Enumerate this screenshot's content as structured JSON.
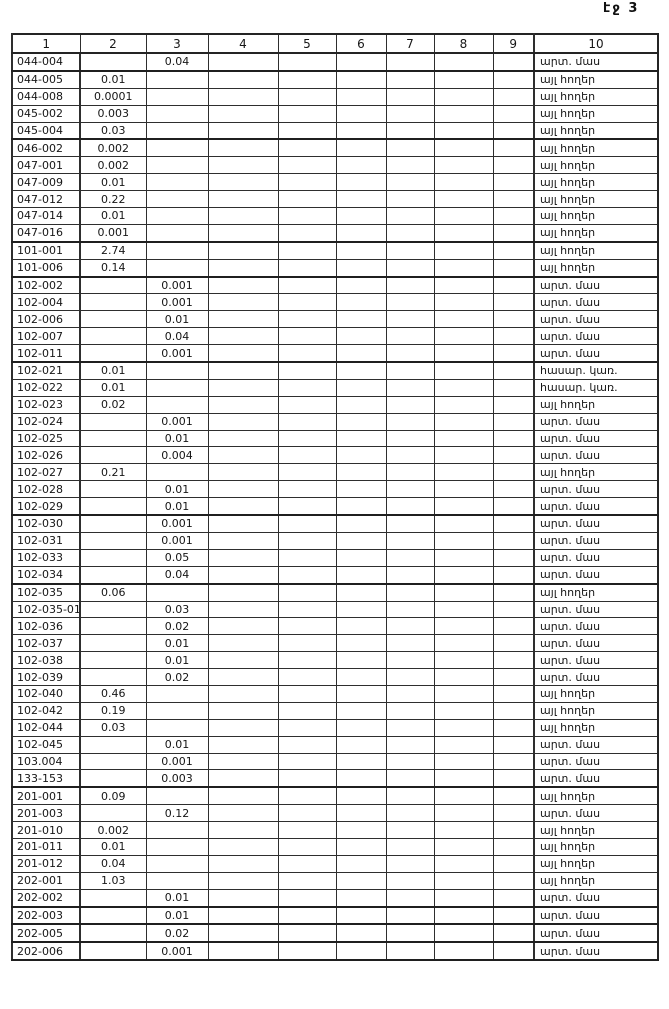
{
  "page": {
    "label": "էջ 3"
  },
  "table": {
    "headers": [
      "1",
      "2",
      "3",
      "4",
      "5",
      "6",
      "7",
      "8",
      "9",
      "10"
    ],
    "rows": [
      [
        "044-004",
        "",
        "0.04",
        "",
        "",
        "",
        "",
        "",
        "",
        "արտ. մաս"
      ],
      [
        "044-005",
        "0.01",
        "",
        "",
        "",
        "",
        "",
        "",
        "",
        "այլ հողեր"
      ],
      [
        "044-008",
        "0.0001",
        "",
        "",
        "",
        "",
        "",
        "",
        "",
        "այլ հողեր"
      ],
      [
        "045-002",
        "0.003",
        "",
        "",
        "",
        "",
        "",
        "",
        "",
        "այլ հողեր"
      ],
      [
        "045-004",
        "0.03",
        "",
        "",
        "",
        "",
        "",
        "",
        "",
        "այլ հողեր"
      ],
      [
        "046-002",
        "0.002",
        "",
        "",
        "",
        "",
        "",
        "",
        "",
        "այլ հողեր"
      ],
      [
        "047-001",
        "0.002",
        "",
        "",
        "",
        "",
        "",
        "",
        "",
        "այլ հողեր"
      ],
      [
        "047-009",
        "0.01",
        "",
        "",
        "",
        "",
        "",
        "",
        "",
        "այլ հողեր"
      ],
      [
        "047-012",
        "0.22",
        "",
        "",
        "",
        "",
        "",
        "",
        "",
        "այլ հողեր"
      ],
      [
        "047-014",
        "0.01",
        "",
        "",
        "",
        "",
        "",
        "",
        "",
        "այլ հողեր"
      ],
      [
        "047-016",
        "0.001",
        "",
        "",
        "",
        "",
        "",
        "",
        "",
        "այլ հողեր"
      ],
      [
        "101-001",
        "2.74",
        "",
        "",
        "",
        "",
        "",
        "",
        "",
        "այլ հողեր"
      ],
      [
        "101-006",
        "0.14",
        "",
        "",
        "",
        "",
        "",
        "",
        "",
        "այլ հողեր"
      ],
      [
        "102-002",
        "",
        "0.001",
        "",
        "",
        "",
        "",
        "",
        "",
        "արտ. մաս"
      ],
      [
        "102-004",
        "",
        "0.001",
        "",
        "",
        "",
        "",
        "",
        "",
        "արտ. մաս"
      ],
      [
        "102-006",
        "",
        "0.01",
        "",
        "",
        "",
        "",
        "",
        "",
        "արտ. մաս"
      ],
      [
        "102-007",
        "",
        "0.04",
        "",
        "",
        "",
        "",
        "",
        "",
        "արտ. մաս"
      ],
      [
        "102-011",
        "",
        "0.001",
        "",
        "",
        "",
        "",
        "",
        "",
        "արտ. մաս"
      ],
      [
        "102-021",
        "0.01",
        "",
        "",
        "",
        "",
        "",
        "",
        "",
        "հասար. կառ."
      ],
      [
        "102-022",
        "0.01",
        "",
        "",
        "",
        "",
        "",
        "",
        "",
        "հասար. կառ."
      ],
      [
        "102-023",
        "0.02",
        "",
        "",
        "",
        "",
        "",
        "",
        "",
        "այլ հողեր"
      ],
      [
        "102-024",
        "",
        "0.001",
        "",
        "",
        "",
        "",
        "",
        "",
        "արտ. մաս"
      ],
      [
        "102-025",
        "",
        "0.01",
        "",
        "",
        "",
        "",
        "",
        "",
        "արտ. մաս"
      ],
      [
        "102-026",
        "",
        "0.004",
        "",
        "",
        "",
        "",
        "",
        "",
        "արտ. մաս"
      ],
      [
        "102-027",
        "0.21",
        "",
        "",
        "",
        "",
        "",
        "",
        "",
        "այլ հողեր"
      ],
      [
        "102-028",
        "",
        "0.01",
        "",
        "",
        "",
        "",
        "",
        "",
        "արտ. մաս"
      ],
      [
        "102-029",
        "",
        "0.01",
        "",
        "",
        "",
        "",
        "",
        "",
        "արտ. մաս"
      ],
      [
        "102-030",
        "",
        "0.001",
        "",
        "",
        "",
        "",
        "",
        "",
        "արտ. մաս"
      ],
      [
        "102-031",
        "",
        "0.001",
        "",
        "",
        "",
        "",
        "",
        "",
        "արտ. մաս"
      ],
      [
        "102-033",
        "",
        "0.05",
        "",
        "",
        "",
        "",
        "",
        "",
        "արտ. մաս"
      ],
      [
        "102-034",
        "",
        "0.04",
        "",
        "",
        "",
        "",
        "",
        "",
        "արտ. մաս"
      ],
      [
        "102-035",
        "0.06",
        "",
        "",
        "",
        "",
        "",
        "",
        "",
        "այլ հողեր"
      ],
      [
        "102-035-01",
        "",
        "0.03",
        "",
        "",
        "",
        "",
        "",
        "",
        "արտ. մաս"
      ],
      [
        "102-036",
        "",
        "0.02",
        "",
        "",
        "",
        "",
        "",
        "",
        "արտ. մաս"
      ],
      [
        "102-037",
        "",
        "0.01",
        "",
        "",
        "",
        "",
        "",
        "",
        "արտ. մաս"
      ],
      [
        "102-038",
        "",
        "0.01",
        "",
        "",
        "",
        "",
        "",
        "",
        "արտ. մաս"
      ],
      [
        "102-039",
        "",
        "0.02",
        "",
        "",
        "",
        "",
        "",
        "",
        "արտ. մաս"
      ],
      [
        "102-040",
        "0.46",
        "",
        "",
        "",
        "",
        "",
        "",
        "",
        "այլ հողեր"
      ],
      [
        "102-042",
        "0.19",
        "",
        "",
        "",
        "",
        "",
        "",
        "",
        "այլ հողեր"
      ],
      [
        "102-044",
        "0.03",
        "",
        "",
        "",
        "",
        "",
        "",
        "",
        "այլ հողեր"
      ],
      [
        "102-045",
        "",
        "0.01",
        "",
        "",
        "",
        "",
        "",
        "",
        "արտ. մաս"
      ],
      [
        "103.004",
        "",
        "0.001",
        "",
        "",
        "",
        "",
        "",
        "",
        "արտ. մաս"
      ],
      [
        "133-153",
        "",
        "0.003",
        "",
        "",
        "",
        "",
        "",
        "",
        "արտ. մաս"
      ],
      [
        "201-001",
        "0.09",
        "",
        "",
        "",
        "",
        "",
        "",
        "",
        "այլ հողեր"
      ],
      [
        "201-003",
        "",
        "0.12",
        "",
        "",
        "",
        "",
        "",
        "",
        "արտ. մաս"
      ],
      [
        "201-010",
        "0.002",
        "",
        "",
        "",
        "",
        "",
        "",
        "",
        "այլ հողեր"
      ],
      [
        "201-011",
        "0.01",
        "",
        "",
        "",
        "",
        "",
        "",
        "",
        "այլ հողեր"
      ],
      [
        "201-012",
        "0.04",
        "",
        "",
        "",
        "",
        "",
        "",
        "",
        "այլ հողեր"
      ],
      [
        "202-001",
        "1.03",
        "",
        "",
        "",
        "",
        "",
        "",
        "",
        "այլ հողեր"
      ],
      [
        "202-002",
        "",
        "0.01",
        "",
        "",
        "",
        "",
        "",
        "",
        "արտ. մաս"
      ],
      [
        "202-003",
        "",
        "0.01",
        "",
        "",
        "",
        "",
        "",
        "",
        "արտ. մաս"
      ],
      [
        "202-005",
        "",
        "0.02",
        "",
        "",
        "",
        "",
        "",
        "",
        "արտ. մաս"
      ],
      [
        "202-006",
        "",
        "0.001",
        "",
        "",
        "",
        "",
        "",
        "",
        "արտ. մաս"
      ]
    ]
  }
}
